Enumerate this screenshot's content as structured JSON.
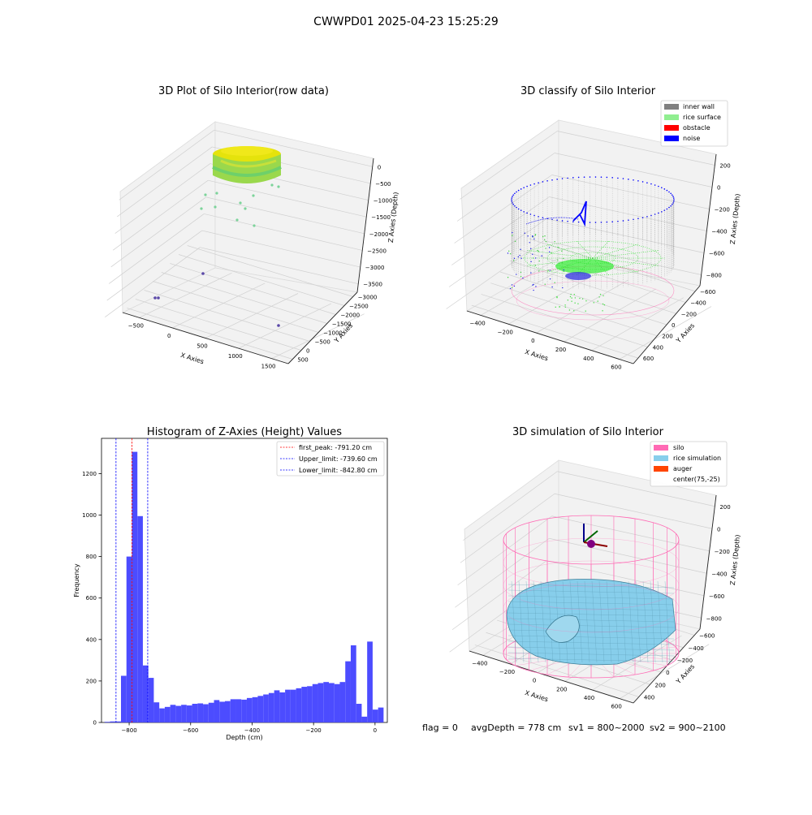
{
  "suptitle": "CWWPD01 2025-04-23 15:25:29",
  "footer": {
    "flag": "flag = 0",
    "avg_depth": "avgDepth = 778 cm",
    "sv1": "sv1 = 800~2000",
    "sv2": "sv2 = 900~2100"
  },
  "chart_data": [
    {
      "type": "scatter",
      "title": "3D Plot of Silo Interior(row data)",
      "xlabel": "X Axies",
      "ylabel": "Y Axies",
      "zlabel": "Z Axies (Depth)",
      "x_ticks": [
        "−500",
        "0",
        "500",
        "1000",
        "1500"
      ],
      "y_ticks": [
        "500",
        "0",
        "−500",
        "−1000",
        "−1500",
        "−2000",
        "−2500",
        "−3000"
      ],
      "z_ticks": [
        "0",
        "−500",
        "−1000",
        "−1500",
        "−2000",
        "−2500",
        "−3000",
        "−3500"
      ],
      "xlim": [
        -700,
        1800
      ],
      "ylim": [
        -3000,
        700
      ],
      "zlim": [
        -3800,
        200
      ]
    },
    {
      "type": "scatter",
      "title": "3D classify of Silo Interior",
      "xlabel": "X Axies",
      "ylabel": "Y Axies",
      "zlabel": "Z Axies (Depth)",
      "x_ticks": [
        "−400",
        "−200",
        "0",
        "200",
        "400",
        "600"
      ],
      "y_ticks": [
        "600",
        "400",
        "200",
        "0",
        "−200",
        "−400",
        "−600"
      ],
      "z_ticks": [
        "200",
        "0",
        "−200",
        "−400",
        "−600",
        "−800"
      ],
      "legend": [
        {
          "label": "inner wall",
          "color": "#808080"
        },
        {
          "label": "rice surface",
          "color": "#90ee90"
        },
        {
          "label": "obstacle",
          "color": "#ff0000"
        },
        {
          "label": "noise",
          "color": "#0000ff"
        }
      ]
    },
    {
      "type": "bar",
      "title": "Histogram of Z-Axies (Height) Values",
      "xlabel": "Depth (cm)",
      "ylabel": "Frequency",
      "bin_width": 17.8,
      "bin_start": -880,
      "values": [
        3,
        5,
        5,
        225,
        800,
        1305,
        995,
        275,
        215,
        97,
        68,
        75,
        85,
        80,
        85,
        82,
        90,
        92,
        88,
        95,
        108,
        100,
        103,
        112,
        112,
        110,
        118,
        122,
        128,
        135,
        142,
        155,
        145,
        158,
        158,
        165,
        172,
        175,
        185,
        190,
        195,
        190,
        185,
        195,
        295,
        372,
        90,
        28,
        390,
        62,
        72
      ],
      "xlim": [
        -890,
        40
      ],
      "ylim": [
        0,
        1370
      ],
      "x_ticks": [
        -800,
        -600,
        -400,
        -200,
        0
      ],
      "x_tick_labels": [
        "−800",
        "−600",
        "−400",
        "−200",
        "0"
      ],
      "y_ticks": [
        0,
        200,
        400,
        600,
        800,
        1000,
        1200
      ],
      "y_tick_labels": [
        "0",
        "200",
        "400",
        "600",
        "800",
        "1000",
        "1200"
      ],
      "vlines": [
        {
          "x": -791.2,
          "color": "#ff0000",
          "label": "first_peak: -791.20 cm"
        },
        {
          "x": -739.6,
          "color": "#0000ff",
          "label": "Upper_limit: -739.60 cm"
        },
        {
          "x": -842.8,
          "color": "#0000ff",
          "label": "Lower_limit: -842.80 cm"
        }
      ],
      "bar_color": "#4c4cff",
      "legend_position": "upper right"
    },
    {
      "type": "surface",
      "title": "3D simulation of Silo Interior",
      "xlabel": "X Axies",
      "ylabel": "Y Axies",
      "zlabel": "Z Axies (Depth)",
      "x_ticks": [
        "−400",
        "−200",
        "0",
        "200",
        "400",
        "600"
      ],
      "y_ticks": [
        "400",
        "200",
        "0",
        "−200",
        "−400",
        "−600"
      ],
      "z_ticks": [
        "200",
        "0",
        "−200",
        "−400",
        "−600",
        "−800"
      ],
      "legend": [
        {
          "label": "silo",
          "color": "#ff69b4"
        },
        {
          "label": "rice simulation",
          "color": "#87ceeb"
        },
        {
          "label": "auger",
          "color": "#ff4500"
        },
        {
          "label": "center(75,-25)",
          "color": "#ffffff"
        }
      ]
    }
  ]
}
